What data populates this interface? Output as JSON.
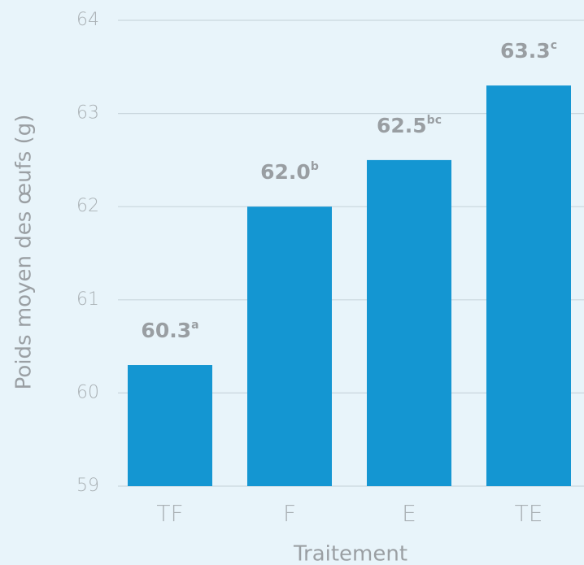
{
  "chart_data": {
    "type": "bar",
    "x_label": "Traitement",
    "y_label": "Poids moyen des œufs (g)",
    "categories": [
      "TF",
      "F",
      "E",
      "TE"
    ],
    "values": [
      60.3,
      62.0,
      62.5,
      63.3
    ],
    "value_labels": [
      "60.3",
      "62.0",
      "62.5",
      "63.3"
    ],
    "significance": [
      "a",
      "b",
      "bc",
      "c"
    ],
    "color": "#1496d2",
    "ylim": [
      59,
      64
    ],
    "yticks": [
      59,
      60,
      61,
      62,
      63,
      64
    ],
    "grid": true
  }
}
